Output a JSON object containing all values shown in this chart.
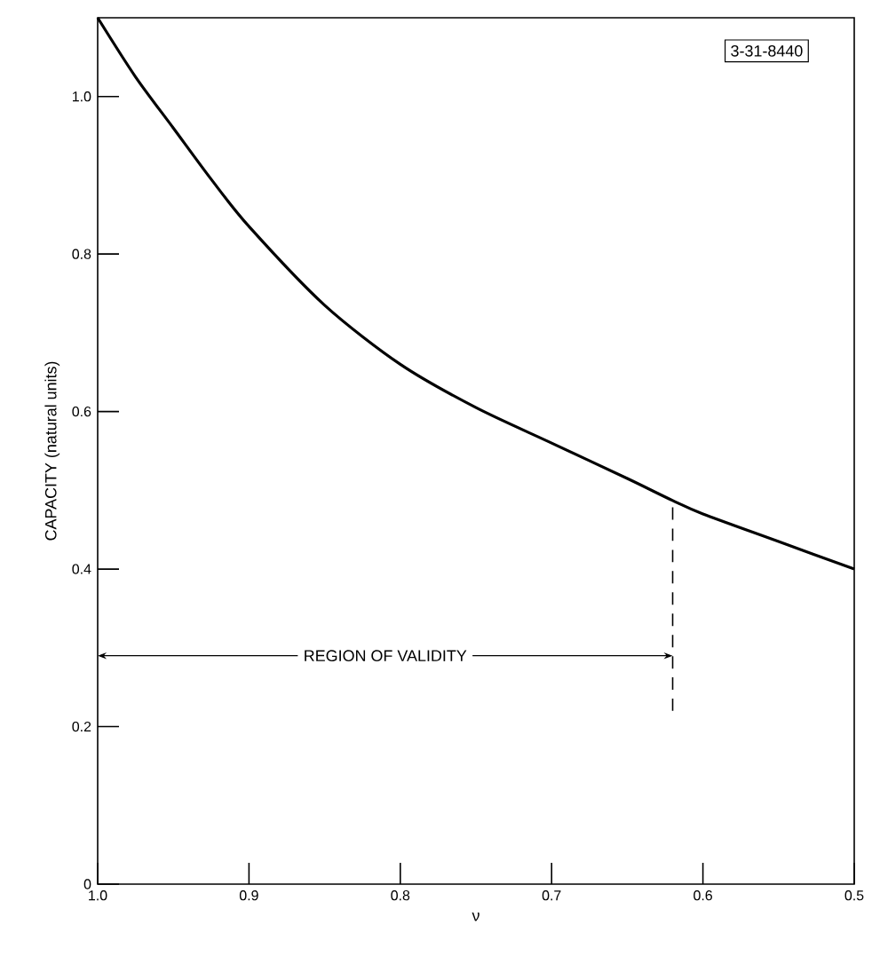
{
  "chart_data": {
    "type": "line",
    "xlabel": "ν",
    "ylabel": "CAPACITY (natural units)",
    "xlim": [
      1.0,
      0.5
    ],
    "ylim": [
      0,
      1.1
    ],
    "xticks": [
      {
        "value": 1.0,
        "label": "1.0"
      },
      0.9,
      0.8,
      0.7,
      0.6,
      0.5
    ],
    "yticks": [
      0,
      0.2,
      0.4,
      0.6,
      0.8,
      {
        "value": 1.0,
        "label": "1.0"
      }
    ],
    "grid": false,
    "marker": "none",
    "series": [
      {
        "color": "#000000",
        "line_style": "solid",
        "x": [
          1.0,
          0.975,
          0.95,
          0.925,
          0.9,
          0.85,
          0.8,
          0.75,
          0.7,
          0.65,
          0.62,
          0.6,
          0.55,
          0.5
        ],
        "values": [
          1.1,
          1.025,
          0.96,
          0.895,
          0.835,
          0.735,
          0.66,
          0.605,
          0.56,
          0.515,
          0.487,
          0.47,
          0.435,
          0.4
        ]
      },
      {
        "color": "#000000",
        "line_style": "dashed",
        "x": [
          0.62,
          0.62
        ],
        "values": [
          0.22,
          0.487
        ]
      }
    ],
    "annotations": [
      {
        "text": "REGION OF VALIDITY",
        "x": 0.62,
        "y": 0.29
      },
      "3-31-8440"
    ]
  }
}
